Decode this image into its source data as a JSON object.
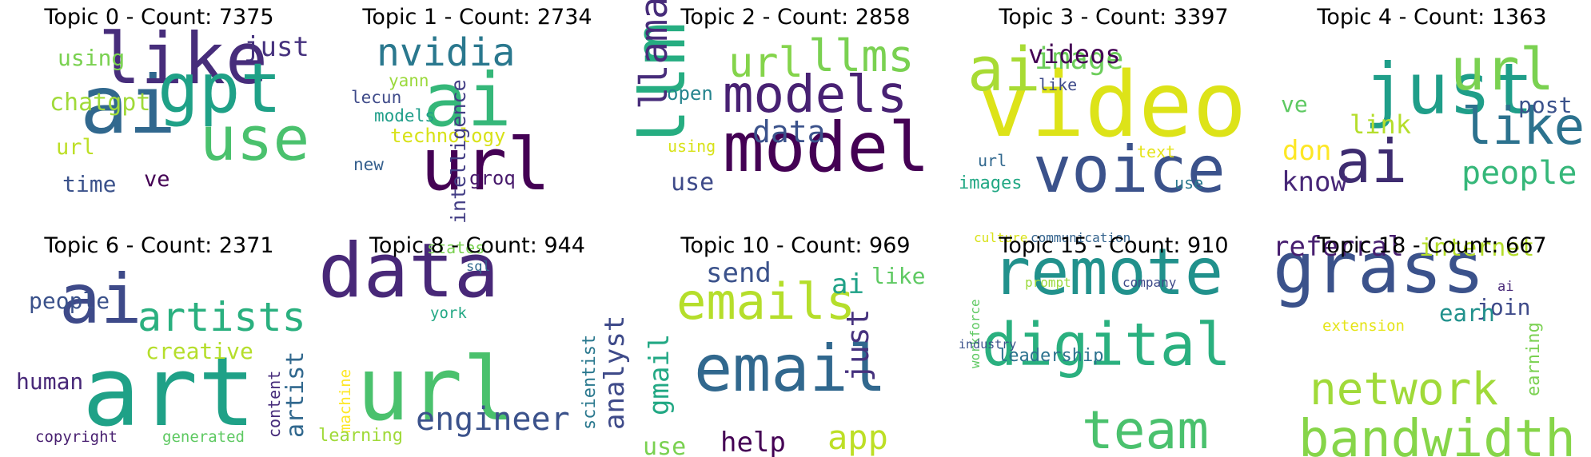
{
  "chart_data": {
    "type": "wordcloud",
    "colormap": "viridis",
    "panels": [
      {
        "title": "Topic 0 - Count: 7375",
        "words": [
          {
            "text": "ai",
            "color": "#31688e"
          },
          {
            "text": "like",
            "color": "#472d7b"
          },
          {
            "text": "gpt",
            "color": "#1fa187"
          },
          {
            "text": "use",
            "color": "#4ac16d"
          },
          {
            "text": "just",
            "color": "#46327e"
          },
          {
            "text": "using",
            "color": "#7ad151"
          },
          {
            "text": "chatgpt",
            "color": "#a0da39"
          },
          {
            "text": "url",
            "color": "#bddf26"
          },
          {
            "text": "time",
            "color": "#3b528b"
          },
          {
            "text": "ve",
            "color": "#440154"
          }
        ]
      },
      {
        "title": "Topic 1 - Count: 2734",
        "words": [
          {
            "text": "ai",
            "color": "#35b779"
          },
          {
            "text": "url",
            "color": "#440154"
          },
          {
            "text": "nvidia",
            "color": "#2a788e"
          },
          {
            "text": "yann",
            "color": "#9bd93c"
          },
          {
            "text": "lecun",
            "color": "#3e4a89"
          },
          {
            "text": "models",
            "color": "#1f9e89"
          },
          {
            "text": "technology",
            "color": "#d8e219"
          },
          {
            "text": "new",
            "color": "#355f8d"
          },
          {
            "text": "intelligence",
            "color": "#433e85"
          },
          {
            "text": "groq",
            "color": "#481a6c"
          }
        ]
      },
      {
        "title": "Topic 2 - Count: 2858",
        "words": [
          {
            "text": "llm",
            "color": "#26ad81"
          },
          {
            "text": "model",
            "color": "#440154"
          },
          {
            "text": "models",
            "color": "#482173"
          },
          {
            "text": "url",
            "color": "#84d44b"
          },
          {
            "text": "llms",
            "color": "#7ad151"
          },
          {
            "text": "llama",
            "color": "#472c7a"
          },
          {
            "text": "data",
            "color": "#3b528b"
          },
          {
            "text": "open",
            "color": "#25848e"
          },
          {
            "text": "using",
            "color": "#d8e219"
          },
          {
            "text": "use",
            "color": "#3e4a89"
          }
        ]
      },
      {
        "title": "Topic 3 - Count: 3397",
        "words": [
          {
            "text": "video",
            "color": "#dde318"
          },
          {
            "text": "voice",
            "color": "#3b528b"
          },
          {
            "text": "ai",
            "color": "#a8db34"
          },
          {
            "text": "image",
            "color": "#6ccd5a"
          },
          {
            "text": "videos",
            "color": "#440154"
          },
          {
            "text": "like",
            "color": "#3e4a89"
          },
          {
            "text": "url",
            "color": "#31688e"
          },
          {
            "text": "images",
            "color": "#22a884"
          },
          {
            "text": "text",
            "color": "#e5e419"
          },
          {
            "text": "use",
            "color": "#2a788e"
          }
        ]
      },
      {
        "title": "Topic 4 - Count: 1363",
        "words": [
          {
            "text": "just",
            "color": "#1f9e89"
          },
          {
            "text": "url",
            "color": "#7ad151"
          },
          {
            "text": "ai",
            "color": "#3e2c70"
          },
          {
            "text": "like",
            "color": "#2c728e"
          },
          {
            "text": "people",
            "color": "#35b779"
          },
          {
            "text": "ve",
            "color": "#5ec962"
          },
          {
            "text": "link",
            "color": "#b5de2b"
          },
          {
            "text": "post",
            "color": "#3b528b"
          },
          {
            "text": "don",
            "color": "#fde725"
          },
          {
            "text": "know",
            "color": "#482878"
          }
        ]
      },
      {
        "title": "Topic 6 - Count: 2371",
        "words": [
          {
            "text": "art",
            "color": "#1fa187"
          },
          {
            "text": "ai",
            "color": "#3e4a89"
          },
          {
            "text": "artists",
            "color": "#2ab07f"
          },
          {
            "text": "creative",
            "color": "#b5de2b"
          },
          {
            "text": "people",
            "color": "#3b528b"
          },
          {
            "text": "human",
            "color": "#482878"
          },
          {
            "text": "artist",
            "color": "#31688e"
          },
          {
            "text": "content",
            "color": "#472d7b"
          },
          {
            "text": "copyright",
            "color": "#481f70"
          },
          {
            "text": "generated",
            "color": "#5ec962"
          }
        ]
      },
      {
        "title": "Topic 8 - Count: 944",
        "words": [
          {
            "text": "data",
            "color": "#482878"
          },
          {
            "text": "url",
            "color": "#4ac16d"
          },
          {
            "text": "engineer",
            "color": "#3b528b"
          },
          {
            "text": "analyst",
            "color": "#3e4a89"
          },
          {
            "text": "scientist",
            "color": "#2a788e"
          },
          {
            "text": "states",
            "color": "#7ad151"
          },
          {
            "text": "sql",
            "color": "#31688e"
          },
          {
            "text": "york",
            "color": "#22a884"
          },
          {
            "text": "machine",
            "color": "#fde725"
          },
          {
            "text": "learning",
            "color": "#a0da39"
          }
        ]
      },
      {
        "title": "Topic 10 - Count: 969",
        "words": [
          {
            "text": "email",
            "color": "#31688e"
          },
          {
            "text": "emails",
            "color": "#b5de2b"
          },
          {
            "text": "send",
            "color": "#3b528b"
          },
          {
            "text": "ai",
            "color": "#1fa187"
          },
          {
            "text": "like",
            "color": "#5ec962"
          },
          {
            "text": "just",
            "color": "#46327e"
          },
          {
            "text": "gmail",
            "color": "#22a884"
          },
          {
            "text": "use",
            "color": "#7ad151"
          },
          {
            "text": "help",
            "color": "#440154"
          },
          {
            "text": "app",
            "color": "#bddf26"
          }
        ]
      },
      {
        "title": "Topic 15 - Count: 910",
        "words": [
          {
            "text": "remote",
            "color": "#21918c"
          },
          {
            "text": "digital",
            "color": "#2ab07f"
          },
          {
            "text": "team",
            "color": "#4ac16d"
          },
          {
            "text": "culture",
            "color": "#d8e219"
          },
          {
            "text": "communication",
            "color": "#33638d"
          },
          {
            "text": "workforce",
            "color": "#5ec962"
          },
          {
            "text": "prompt",
            "color": "#9bd93c"
          },
          {
            "text": "company",
            "color": "#3e4a89"
          },
          {
            "text": "industry",
            "color": "#3b528b"
          },
          {
            "text": "leadership",
            "color": "#2c728e"
          }
        ]
      },
      {
        "title": "Topic 18 - Count: 667",
        "words": [
          {
            "text": "grass",
            "color": "#3b528b"
          },
          {
            "text": "bandwidth",
            "color": "#86d549"
          },
          {
            "text": "network",
            "color": "#a0da39"
          },
          {
            "text": "referral",
            "color": "#481f70"
          },
          {
            "text": "internet",
            "color": "#b5de2b"
          },
          {
            "text": "earning",
            "color": "#7ad151"
          },
          {
            "text": "ai",
            "color": "#482878"
          },
          {
            "text": "join",
            "color": "#3e4a89"
          },
          {
            "text": "earn",
            "color": "#21918c"
          },
          {
            "text": "extension",
            "color": "#e5e419"
          }
        ]
      }
    ]
  }
}
